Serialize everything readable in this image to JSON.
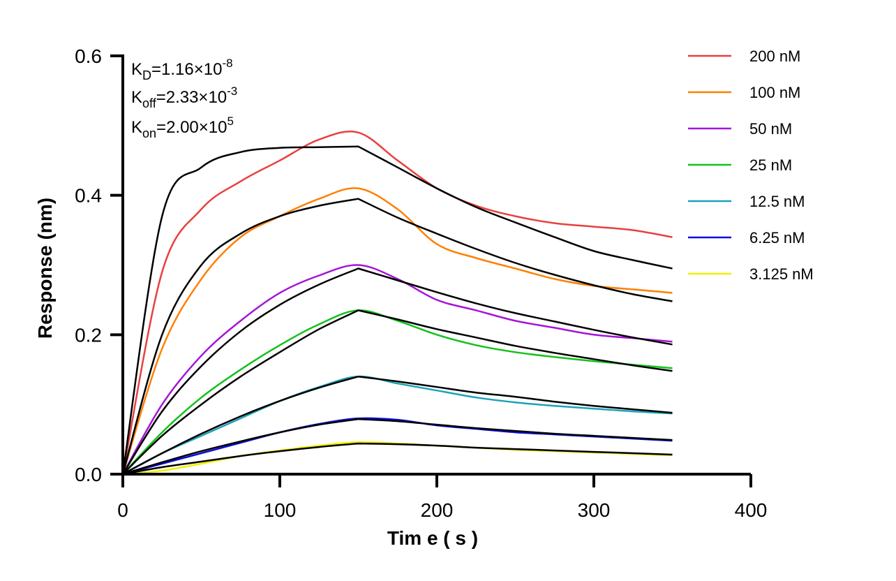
{
  "chart_data": {
    "type": "line",
    "title": "",
    "xlabel": "Tim e ( s )",
    "ylabel": "Response (nm)",
    "xlim": [
      0,
      400
    ],
    "ylim": [
      0,
      0.6
    ],
    "xticks": [
      "0",
      "100",
      "200",
      "300",
      "400"
    ],
    "yticks": [
      "0.0",
      "0.2",
      "0.4",
      "0.6"
    ],
    "grid": false,
    "legend_position": "top-right",
    "annotations": {
      "kd": {
        "label": "K",
        "sub": "D",
        "eq": "=1.16×10",
        "exp": "-8"
      },
      "koff": {
        "label": "K",
        "sub": "off",
        "eq": "=2.33×10",
        "exp": "-3"
      },
      "kon": {
        "label": "K",
        "sub": "on",
        "eq": "=2.00×10",
        "exp": "5"
      }
    },
    "x": [
      0,
      25,
      50,
      75,
      100,
      125,
      150,
      175,
      200,
      225,
      250,
      275,
      300,
      325,
      350
    ],
    "series": [
      {
        "name": "200 nM",
        "color": "#e8403f",
        "values": [
          0,
          0.29,
          0.38,
          0.42,
          0.45,
          0.48,
          0.49,
          0.45,
          0.41,
          0.385,
          0.37,
          0.36,
          0.355,
          0.35,
          0.34
        ]
      },
      {
        "name": "100 nM",
        "color": "#ff8000",
        "values": [
          0,
          0.18,
          0.28,
          0.34,
          0.37,
          0.395,
          0.41,
          0.38,
          0.33,
          0.31,
          0.295,
          0.28,
          0.27,
          0.265,
          0.26
        ]
      },
      {
        "name": "50 nM",
        "color": "#a614d8",
        "values": [
          0,
          0.1,
          0.17,
          0.22,
          0.26,
          0.285,
          0.3,
          0.28,
          0.25,
          0.235,
          0.22,
          0.21,
          0.2,
          0.195,
          0.19
        ]
      },
      {
        "name": "25 nM",
        "color": "#12c21b",
        "values": [
          0,
          0.06,
          0.11,
          0.15,
          0.185,
          0.215,
          0.235,
          0.22,
          0.2,
          0.185,
          0.175,
          0.168,
          0.162,
          0.157,
          0.152
        ]
      },
      {
        "name": "12.5 nM",
        "color": "#1aa2b8",
        "values": [
          0,
          0.03,
          0.055,
          0.08,
          0.105,
          0.125,
          0.14,
          0.13,
          0.12,
          0.11,
          0.103,
          0.098,
          0.094,
          0.09,
          0.087
        ]
      },
      {
        "name": "6.25 nM",
        "color": "#0a0adf",
        "values": [
          0,
          0.015,
          0.03,
          0.045,
          0.06,
          0.072,
          0.08,
          0.078,
          0.07,
          0.065,
          0.06,
          0.057,
          0.054,
          0.051,
          0.048
        ]
      },
      {
        "name": "3.125 nM",
        "color": "#f0f000",
        "values": [
          0,
          0.005,
          0.015,
          0.026,
          0.034,
          0.041,
          0.046,
          0.044,
          0.041,
          0.038,
          0.035,
          0.033,
          0.031,
          0.029,
          0.027
        ]
      }
    ],
    "fit": {
      "name": "",
      "color": "#000000",
      "series": [
        [
          0,
          0.37,
          0.44,
          0.462,
          0.468,
          0.469,
          0.47,
          0.44,
          0.41,
          0.383,
          0.361,
          0.34,
          0.32,
          0.307,
          0.295
        ],
        [
          0,
          0.2,
          0.3,
          0.345,
          0.37,
          0.385,
          0.395,
          0.368,
          0.345,
          0.323,
          0.303,
          0.286,
          0.271,
          0.258,
          0.248
        ],
        [
          0,
          0.09,
          0.155,
          0.205,
          0.243,
          0.272,
          0.295,
          0.278,
          0.261,
          0.245,
          0.231,
          0.219,
          0.207,
          0.196,
          0.186
        ],
        [
          0,
          0.055,
          0.1,
          0.14,
          0.175,
          0.208,
          0.235,
          0.222,
          0.208,
          0.196,
          0.184,
          0.174,
          0.165,
          0.156,
          0.148
        ],
        [
          0,
          0.03,
          0.058,
          0.083,
          0.105,
          0.124,
          0.14,
          0.133,
          0.125,
          0.117,
          0.111,
          0.104,
          0.098,
          0.093,
          0.088
        ],
        [
          0,
          0.017,
          0.033,
          0.047,
          0.06,
          0.071,
          0.079,
          0.076,
          0.071,
          0.066,
          0.062,
          0.058,
          0.055,
          0.052,
          0.049
        ],
        [
          0,
          0.01,
          0.018,
          0.026,
          0.033,
          0.039,
          0.044,
          0.043,
          0.041,
          0.038,
          0.036,
          0.034,
          0.032,
          0.03,
          0.028
        ]
      ]
    }
  }
}
